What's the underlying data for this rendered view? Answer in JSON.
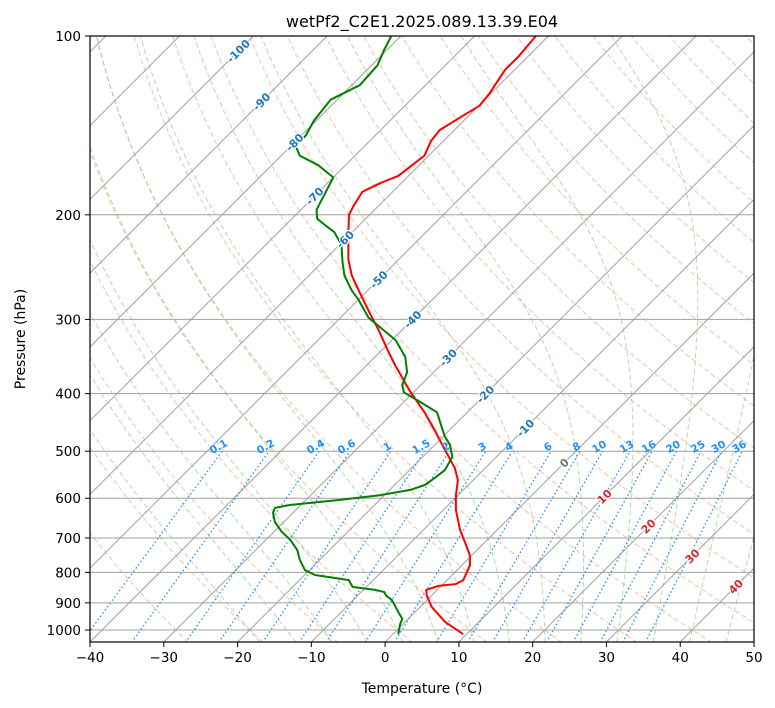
{
  "chart_data": {
    "type": "line",
    "subtype": "skew-t log-p",
    "title": "wetPf2_C2E1.2025.089.13.39.E04",
    "xlabel": "Temperature (°C)",
    "ylabel": "Pressure (hPa)",
    "xlim": [
      -40,
      50
    ],
    "ylim": [
      1050,
      100
    ],
    "x_ticks": [
      -40,
      -30,
      -20,
      -10,
      0,
      10,
      20,
      30,
      40,
      50
    ],
    "y_ticks": [
      100,
      200,
      300,
      400,
      500,
      600,
      700,
      800,
      900,
      1000
    ],
    "grid": true,
    "colors": {
      "temperature": "#ff0000",
      "dewpoint": "#008000",
      "isotherm": "#a0a0a0",
      "dry_adiabat": "#f4a582",
      "moist_adiabat": "#92c98e",
      "mixing_ratio": "#1e90ff",
      "label_cold": "#1f77b4",
      "label_zero": "#707070",
      "label_warm": "#d62728"
    },
    "isotherm_labels": [
      "-100",
      "-90",
      "-80",
      "-70",
      "-60",
      "-50",
      "-40",
      "-30",
      "-20",
      "-10",
      "0",
      "10",
      "20",
      "30",
      "40"
    ],
    "mixing_ratio_labels": [
      "0.1",
      "0.2",
      "0.4",
      "0.6",
      "1",
      "1.5",
      "2",
      "3",
      "4",
      "6",
      "8",
      "10",
      "13",
      "16",
      "20",
      "25",
      "30",
      "36"
    ],
    "series": [
      {
        "name": "Temperature",
        "pressure": [
          1016,
          969,
          915,
          876,
          856,
          843,
          837,
          824,
          778,
          748,
          719,
          679,
          628,
          593,
          559,
          534,
          508,
          494,
          461,
          430,
          395,
          358,
          338,
          313,
          292,
          273,
          253,
          238,
          216,
          200,
          193,
          183,
          177,
          172,
          164,
          159,
          150,
          144,
          137,
          131,
          125,
          114,
          108,
          100
        ],
        "temperature": [
          9.5,
          5.4,
          1.6,
          -0.6,
          -1.5,
          -0.4,
          1.7,
          2.2,
          1.1,
          -0.3,
          -2.2,
          -5.0,
          -8.3,
          -10.3,
          -12.1,
          -14.1,
          -16.8,
          -18.3,
          -22.0,
          -25.8,
          -30.8,
          -36.2,
          -39.2,
          -43.1,
          -46.8,
          -50.3,
          -54.2,
          -56.8,
          -60.2,
          -62.8,
          -63.4,
          -64.1,
          -62.9,
          -61.4,
          -60.9,
          -60.6,
          -61.7,
          -62.0,
          -60.9,
          -59.9,
          -60.2,
          -61.3,
          -61.3,
          -61.7
        ]
      },
      {
        "name": "Dewpoint",
        "pressure": [
          1016,
          977,
          958,
          929,
          908,
          890,
          876,
          863,
          856,
          850,
          846,
          824,
          818,
          808,
          793,
          762,
          733,
          705,
          684,
          658,
          635,
          623,
          616,
          604,
          593,
          581,
          570,
          555,
          538,
          511,
          488,
          472,
          430,
          413,
          398,
          387,
          368,
          347,
          325,
          298,
          278,
          268,
          253,
          240,
          225,
          214,
          208,
          203,
          196,
          189,
          173,
          165,
          159,
          153,
          147,
          139,
          128,
          121,
          112,
          106,
          100
        ],
        "temperature": [
          0.7,
          -0.4,
          -0.8,
          -2.5,
          -3.7,
          -4.8,
          -6.1,
          -6.9,
          -8.4,
          -10.5,
          -11.9,
          -13.3,
          -15.2,
          -18.6,
          -20.6,
          -22.7,
          -24.4,
          -26.7,
          -28.9,
          -31.2,
          -32.7,
          -33.1,
          -31.5,
          -25.4,
          -20.6,
          -17.2,
          -15.9,
          -15.5,
          -15.2,
          -16.0,
          -17.9,
          -19.8,
          -24.1,
          -27.8,
          -31.3,
          -32.5,
          -33.6,
          -35.9,
          -39.5,
          -46.2,
          -50.0,
          -52.2,
          -55.2,
          -57.3,
          -59.7,
          -62.4,
          -64.7,
          -66.6,
          -67.9,
          -68.5,
          -70.0,
          -73.7,
          -77.5,
          -79.4,
          -79.4,
          -80.3,
          -80.9,
          -78.9,
          -79.2,
          -80.3,
          -81.3
        ]
      }
    ]
  }
}
